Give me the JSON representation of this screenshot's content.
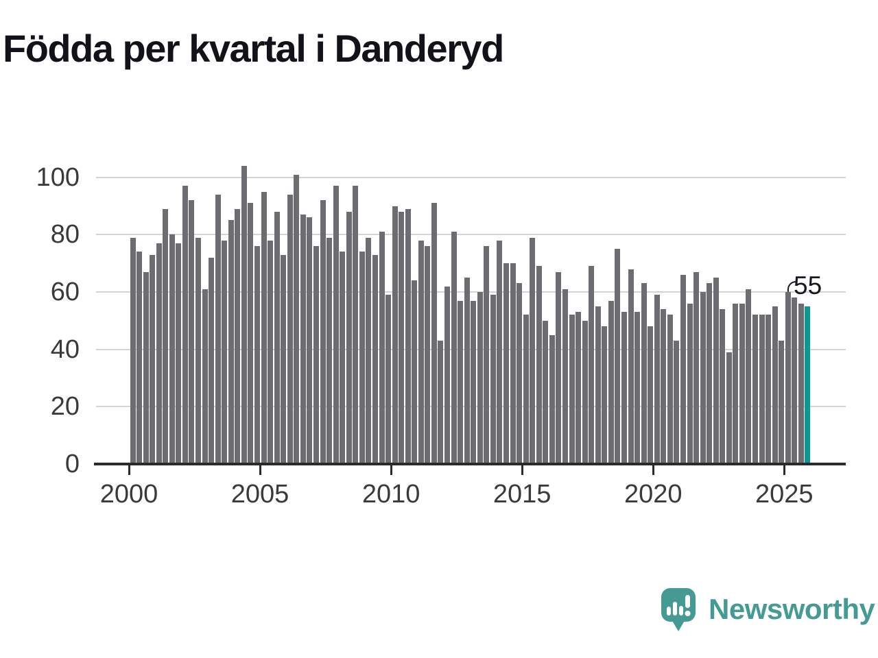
{
  "title": "Födda per kvartal i Danderyd",
  "annotation": {
    "label": "55"
  },
  "logo": {
    "text": "Newsworthy"
  },
  "colors": {
    "bar": "#6c6c71",
    "highlight": "#0a9a93",
    "grid": "#d4d4d4",
    "axis": "#2b2b2b",
    "tick_label": "#3a3a3a",
    "title_text": "#111318",
    "logo_teal": "#459b94",
    "background": "#ffffff"
  },
  "chart_data": {
    "type": "bar",
    "title": "Födda per kvartal i Danderyd",
    "x_start": "2000-Q1",
    "frequency": "quarterly",
    "values": [
      79,
      74,
      67,
      73,
      77,
      89,
      80,
      77,
      97,
      92,
      79,
      61,
      72,
      94,
      78,
      85,
      89,
      104,
      91,
      76,
      95,
      78,
      88,
      73,
      94,
      101,
      87,
      86,
      76,
      92,
      79,
      97,
      74,
      88,
      97,
      74,
      79,
      73,
      81,
      59,
      90,
      88,
      89,
      64,
      78,
      76,
      91,
      43,
      62,
      81,
      57,
      65,
      57,
      60,
      76,
      59,
      78,
      70,
      70,
      63,
      52,
      79,
      69,
      50,
      45,
      67,
      61,
      52,
      53,
      50,
      69,
      55,
      48,
      57,
      75,
      53,
      68,
      53,
      63,
      48,
      59,
      54,
      52,
      43,
      66,
      56,
      67,
      60,
      63,
      65,
      54,
      39,
      56,
      56,
      61,
      52,
      52,
      52,
      55,
      43,
      60,
      58,
      56,
      55
    ],
    "highlight_index": 103,
    "highlight_label": "55",
    "xlabel": "",
    "ylabel": "",
    "ylim": [
      0,
      108
    ],
    "yticks": [
      0,
      20,
      40,
      60,
      80,
      100
    ],
    "xticks": [
      2000,
      2005,
      2010,
      2015,
      2020,
      2025
    ],
    "grid": true,
    "legend": "none"
  }
}
